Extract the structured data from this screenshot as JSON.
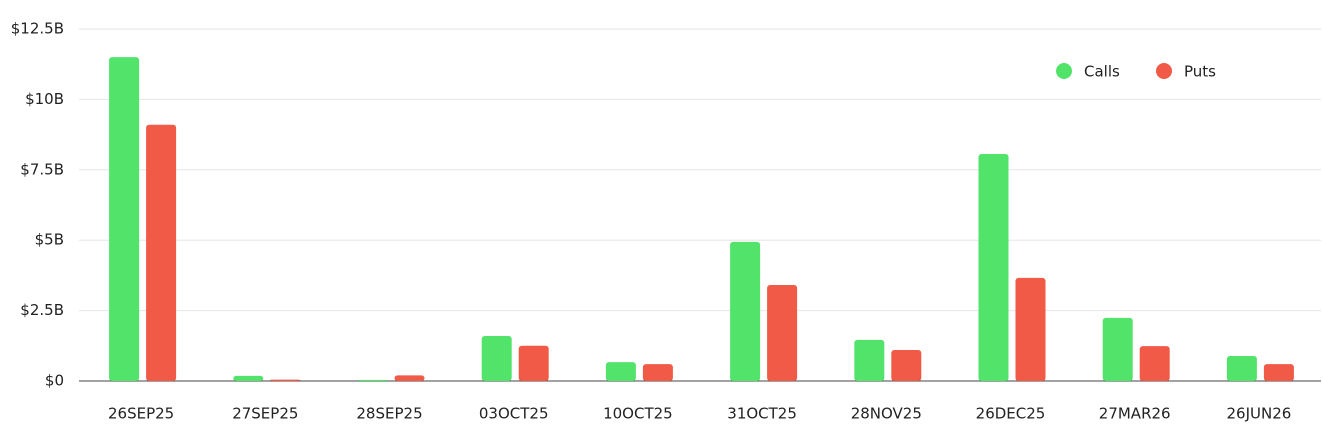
{
  "chart_data": {
    "type": "bar",
    "categories": [
      "26SEP25",
      "27SEP25",
      "28SEP25",
      "03OCT25",
      "10OCT25",
      "31OCT25",
      "28NOV25",
      "26DEC25",
      "27MAR26",
      "26JUN26"
    ],
    "series": [
      {
        "name": "Calls",
        "color": "#52e36b",
        "values": [
          11.5,
          0.18,
          0.04,
          1.6,
          0.67,
          4.94,
          1.46,
          8.06,
          2.24,
          0.89
        ]
      },
      {
        "name": "Puts",
        "color": "#f05a46",
        "values": [
          9.1,
          0.05,
          0.2,
          1.25,
          0.6,
          3.41,
          1.1,
          3.66,
          1.24,
          0.6
        ]
      }
    ],
    "ylim": [
      0,
      12.5
    ],
    "yticks": [
      {
        "value": 0,
        "label": "$0"
      },
      {
        "value": 2.5,
        "label": "$2.5B"
      },
      {
        "value": 5,
        "label": "$5B"
      },
      {
        "value": 7.5,
        "label": "$7.5B"
      },
      {
        "value": 10,
        "label": "$10B"
      },
      {
        "value": 12.5,
        "label": "$12.5B"
      }
    ],
    "grid": true,
    "legend": "top-right"
  }
}
